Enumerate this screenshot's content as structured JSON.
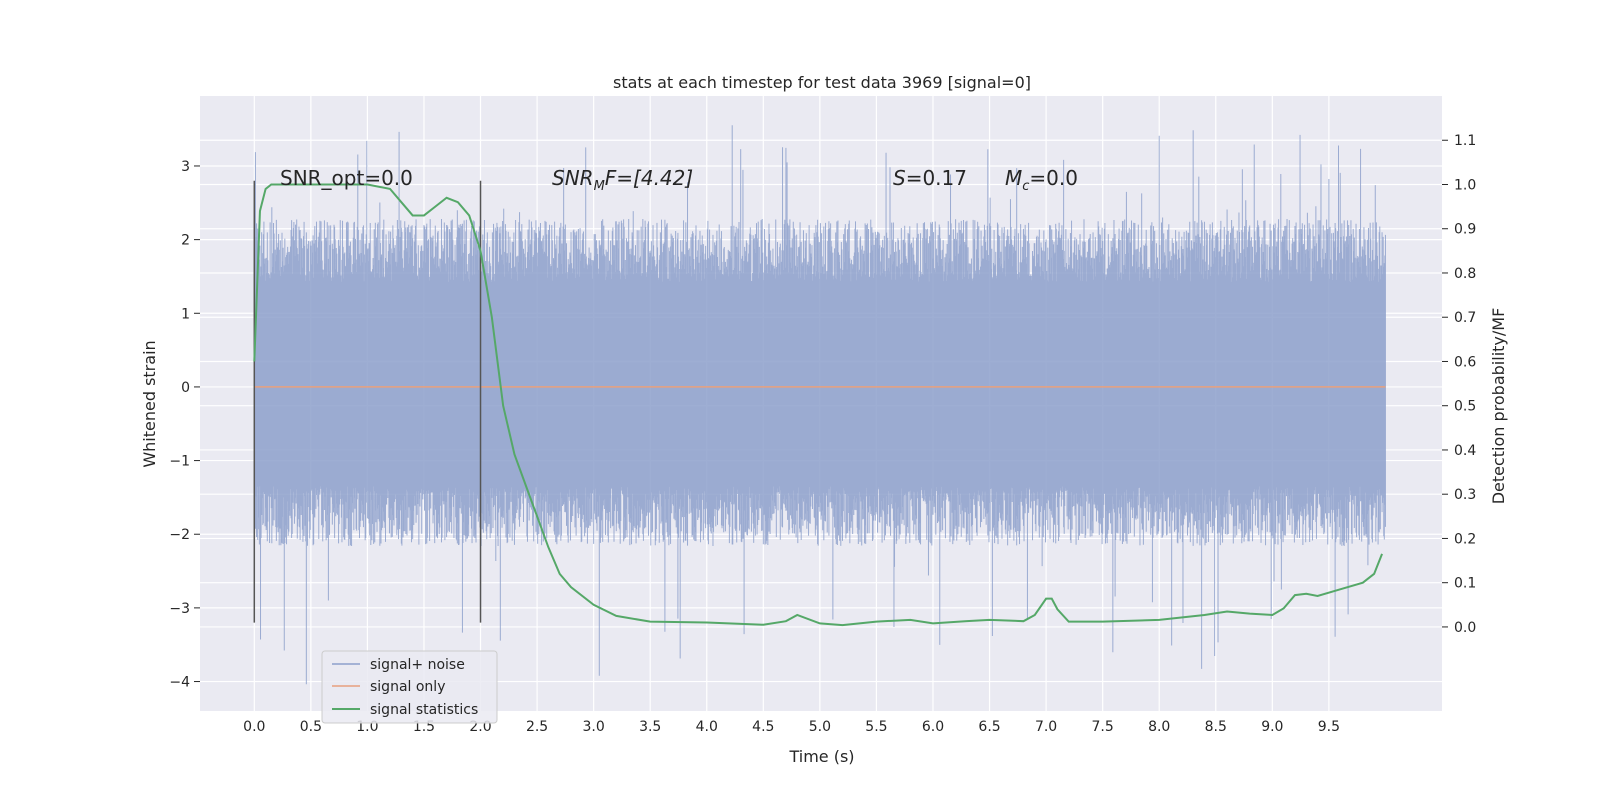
{
  "chart_data": {
    "type": "line",
    "title": "stats at each timestep for test data 3969 [signal=0]",
    "xlabel": "Time (s)",
    "ylabel": "Whitened strain",
    "ylabel_right": "Detection probability/MF",
    "xlim": [
      -0.48,
      10.5
    ],
    "ylim": [
      -4.4,
      3.95
    ],
    "ylim_right": [
      -0.19,
      1.2
    ],
    "x_ticks": [
      "0.0",
      "0.5",
      "1.0",
      "1.5",
      "2.0",
      "2.5",
      "3.0",
      "3.5",
      "4.0",
      "4.5",
      "5.0",
      "5.5",
      "6.0",
      "6.5",
      "7.0",
      "7.5",
      "8.0",
      "8.5",
      "9.0",
      "9.5"
    ],
    "y_ticks": [
      "−4",
      "−3",
      "−2",
      "−1",
      "0",
      "1",
      "2",
      "3"
    ],
    "y_right_ticks": [
      "0.0",
      "0.1",
      "0.2",
      "0.3",
      "0.4",
      "0.5",
      "0.6",
      "0.7",
      "0.8",
      "0.9",
      "1.0",
      "1.1"
    ],
    "grid": true,
    "legend_position": "lower-left",
    "annotations": {
      "snr_opt": "SNR_opt=0.0",
      "snr_mf_prefix": "SNR",
      "snr_mf_sub": "M",
      "snr_mf_suffix": "F=[4.42]",
      "s_label": "S",
      "s_value": "=0.17",
      "mc_label": "M",
      "mc_sub": "c",
      "mc_value": "=0.0"
    },
    "vertical_markers_x": [
      0.0,
      2.0
    ],
    "series": [
      {
        "name": "signal+ noise",
        "color": "#8da0cb",
        "axis": "left",
        "x_range": [
          0,
          10
        ],
        "envelope_typical": [
          -1.8,
          1.9
        ],
        "peak_max": 3.6,
        "peak_min": -4.05
      },
      {
        "name": "signal only",
        "color": "#e8a07e",
        "axis": "left",
        "x": [
          0,
          10
        ],
        "y": [
          0,
          0
        ]
      },
      {
        "name": "signal statistics",
        "color": "#55a868",
        "axis": "right",
        "x": [
          0.0,
          0.05,
          0.1,
          0.15,
          0.3,
          0.5,
          0.8,
          1.0,
          1.2,
          1.3,
          1.4,
          1.5,
          1.6,
          1.7,
          1.8,
          1.9,
          2.0,
          2.1,
          2.2,
          2.3,
          2.4,
          2.5,
          2.6,
          2.7,
          2.8,
          3.0,
          3.2,
          3.5,
          4.0,
          4.5,
          4.7,
          4.8,
          5.0,
          5.2,
          5.5,
          5.8,
          6.0,
          6.3,
          6.5,
          6.8,
          6.9,
          7.0,
          7.05,
          7.1,
          7.2,
          7.5,
          8.0,
          8.4,
          8.6,
          8.8,
          9.0,
          9.1,
          9.2,
          9.3,
          9.4,
          9.6,
          9.8,
          9.9,
          9.97
        ],
        "y": [
          0.6,
          0.94,
          0.99,
          1.0,
          1.0,
          1.0,
          1.0,
          1.0,
          0.99,
          0.96,
          0.93,
          0.93,
          0.95,
          0.97,
          0.96,
          0.93,
          0.85,
          0.7,
          0.5,
          0.39,
          0.32,
          0.25,
          0.18,
          0.12,
          0.09,
          0.05,
          0.025,
          0.012,
          0.01,
          0.005,
          0.013,
          0.027,
          0.008,
          0.004,
          0.012,
          0.016,
          0.008,
          0.013,
          0.016,
          0.013,
          0.027,
          0.064,
          0.064,
          0.04,
          0.012,
          0.012,
          0.016,
          0.027,
          0.035,
          0.03,
          0.027,
          0.042,
          0.072,
          0.075,
          0.07,
          0.085,
          0.1,
          0.12,
          0.165
        ]
      }
    ]
  }
}
